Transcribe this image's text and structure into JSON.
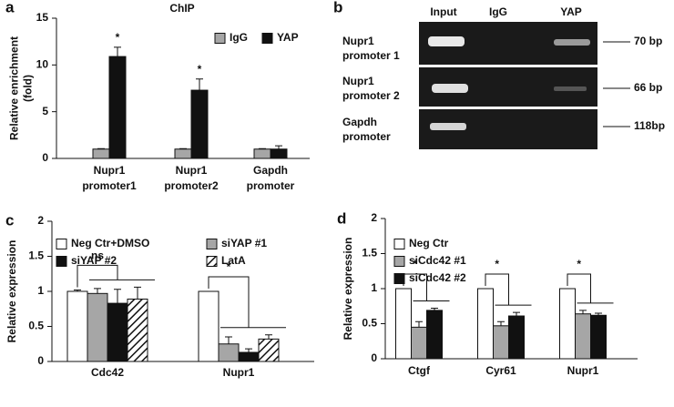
{
  "panel_labels": [
    "a",
    "b",
    "c",
    "d"
  ],
  "gel": {
    "lanes": [
      "Input",
      "IgG",
      "YAP"
    ],
    "rows": [
      {
        "label": [
          "Nupr1",
          "promoter 1"
        ],
        "size": "70 bp"
      },
      {
        "label": [
          "Nupr1",
          "promoter 2"
        ],
        "size": "66 bp"
      },
      {
        "label": [
          "Gapdh",
          "promoter"
        ],
        "size": "118bp"
      }
    ]
  },
  "chart_data": [
    {
      "type": "bar",
      "title": "ChIP",
      "y_label": [
        "Relative enrichment",
        "(fold)"
      ],
      "categories": [
        [
          "Nupr1",
          "promoter1"
        ],
        [
          "Nupr1",
          "promoter2"
        ],
        [
          "Gapdh",
          "promoter"
        ]
      ],
      "series": [
        {
          "name": "IgG",
          "color": "#a6a6a6",
          "values": [
            1,
            1,
            1
          ],
          "errors": [
            0.05,
            0.05,
            0.05
          ]
        },
        {
          "name": "YAP",
          "color": "#111111",
          "values": [
            10.9,
            7.3,
            1.0
          ],
          "errors": [
            1.0,
            1.2,
            0.35
          ]
        }
      ],
      "ylim": [
        0,
        15
      ],
      "yticks": [
        0,
        5,
        10,
        15
      ],
      "legend": "top-right",
      "legend_columns": 2,
      "annotations": [
        "*",
        "*"
      ],
      "brackets": false
    },
    {
      "type": "bar",
      "y_label": "Relative expression",
      "categories": [
        "Cdc42",
        "Nupr1"
      ],
      "series": [
        {
          "name": "Neg Ctr+DMSO",
          "color": "#ffffff",
          "values": [
            1,
            1
          ],
          "errors": [
            0.02,
            0
          ]
        },
        {
          "name": "siYAP #1",
          "color": "#a6a6a6",
          "values": [
            0.97,
            0.25
          ],
          "errors": [
            0.07,
            0.1
          ]
        },
        {
          "name": "siYAP #2",
          "color": "#111111",
          "values": [
            0.83,
            0.13
          ],
          "errors": [
            0.2,
            0.05
          ]
        },
        {
          "name": "LatA",
          "color": "#ffffff",
          "hatch": true,
          "values": [
            0.89,
            0.32
          ],
          "errors": [
            0.17,
            0.06
          ]
        }
      ],
      "ylim": [
        0,
        2
      ],
      "yticks": [
        0,
        0.5,
        1,
        1.5,
        2
      ],
      "legend": "top-left",
      "legend_columns": 2,
      "annotations": [
        "ns",
        "*"
      ],
      "brackets": true
    },
    {
      "type": "bar",
      "y_label": "Relative expression",
      "categories": [
        "Ctgf",
        "Cyr61",
        "Nupr1"
      ],
      "series": [
        {
          "name": "Neg Ctr",
          "color": "#ffffff",
          "values": [
            1,
            1,
            1
          ],
          "errors": [
            0,
            0,
            0
          ]
        },
        {
          "name": "siCdc42 #1",
          "color": "#a6a6a6",
          "values": [
            0.45,
            0.47,
            0.64
          ],
          "errors": [
            0.08,
            0.06,
            0.05
          ]
        },
        {
          "name": "siCdc42 #2",
          "color": "#111111",
          "values": [
            0.69,
            0.61,
            0.62
          ],
          "errors": [
            0.03,
            0.05,
            0.03
          ]
        }
      ],
      "ylim": [
        0,
        2
      ],
      "yticks": [
        0,
        0.5,
        1,
        1.5,
        2
      ],
      "legend": "top-left",
      "legend_columns": 1,
      "annotations": [
        "*",
        "*",
        "*"
      ],
      "brackets": true
    }
  ]
}
